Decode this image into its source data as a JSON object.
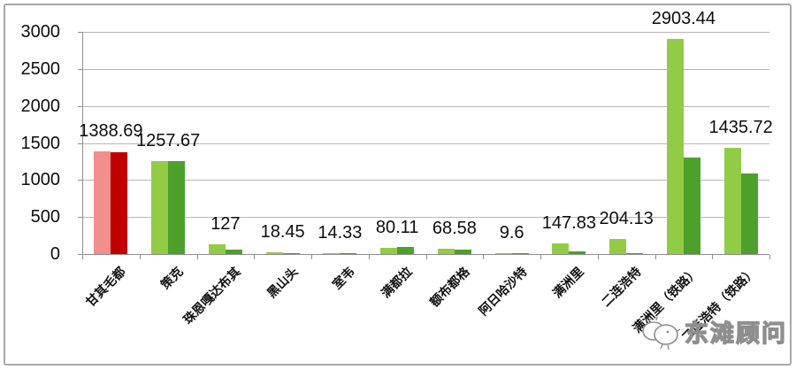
{
  "watermark": {
    "text": "东滩顾问"
  },
  "chart_data": {
    "type": "bar",
    "title": "",
    "xlabel": "",
    "ylabel": "",
    "categories": [
      "甘其毛都",
      "策克",
      "珠恩嘎达布其",
      "黑山头",
      "室韦",
      "满都拉",
      "额布都格",
      "阿日哈沙特",
      "满洲里",
      "二连浩特",
      "满洲里（铁路）",
      "二连浩特（铁路）"
    ],
    "series": [
      {
        "values": [
          1388.69,
          1257.67,
          127,
          18.45,
          14.33,
          80.11,
          68.58,
          9.6,
          147.83,
          204.13,
          2903.44,
          1435.72
        ]
      },
      {
        "values": [
          1380,
          1250,
          60,
          12,
          10,
          95,
          55,
          4,
          30,
          2,
          1300,
          1090
        ]
      }
    ],
    "data_labels": [
      "1388.69",
      "1257.67",
      "127",
      "18.45",
      "14.33",
      "80.11",
      "68.58",
      "9.6",
      "147.83",
      "204.13",
      "2903.44",
      "1435.72"
    ],
    "yticks": [
      0,
      500,
      1000,
      1500,
      2000,
      2500,
      3000
    ],
    "ylim": [
      0,
      3000
    ],
    "grid": true,
    "legend": "none",
    "colors": {
      "series1": "#92cc47",
      "series2": "#4da02c",
      "series1_highlight": "#f28e8e",
      "series2_highlight": "#c00000",
      "highlight_index": 0
    }
  }
}
